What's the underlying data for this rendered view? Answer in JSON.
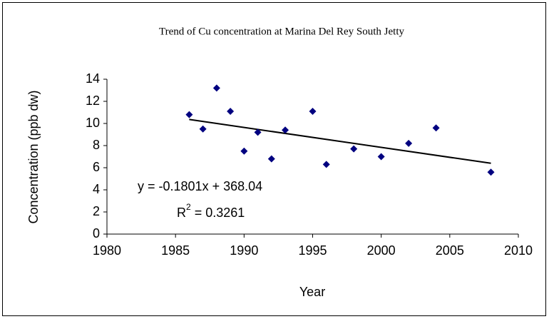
{
  "chart_data": {
    "type": "scatter",
    "title": "Trend of Cu concentration at Marina Del Rey South Jetty",
    "x_label": "Year",
    "y_label": "Concentration (ppb dw)",
    "series": [
      {
        "color": "#000080",
        "x": [
          1986,
          1987,
          1988,
          1989,
          1990,
          1991,
          1992,
          1993,
          1995,
          1996,
          1998,
          2000,
          2002,
          2004,
          2008
        ],
        "values": [
          10.8,
          9.5,
          13.2,
          11.1,
          7.5,
          9.2,
          6.8,
          9.4,
          11.1,
          6.3,
          7.7,
          7.0,
          8.2,
          9.6,
          5.6
        ]
      }
    ],
    "trendline": {
      "color": "#000000",
      "x": [
        1986,
        2008
      ],
      "values": [
        10.36,
        6.4
      ]
    },
    "equation": "y = -0.1801x + 368.04",
    "r_squared": {
      "base": "R",
      "sup": "2",
      "rest": " = 0.3261"
    },
    "xlim": [
      1980,
      2010
    ],
    "xticks": [
      1980,
      1985,
      1990,
      1995,
      2000,
      2005,
      2010
    ],
    "ylim": [
      0,
      14
    ],
    "yticks": [
      0,
      2,
      4,
      6,
      8,
      10,
      12,
      14
    ],
    "grid": false
  }
}
